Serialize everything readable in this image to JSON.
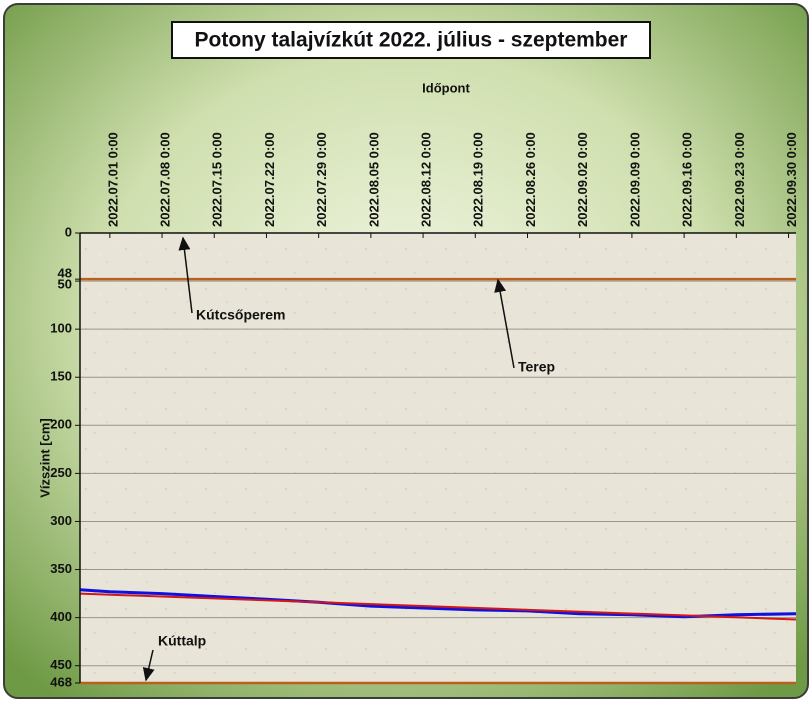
{
  "chart_data": {
    "type": "line",
    "title": "Potony talajvízkút 2022. július - szeptember",
    "x_label": "Időpont",
    "y_label": "Vízszint [cm]",
    "xlim": [
      "2022-06-27",
      "2022-10-01"
    ],
    "xticks": [
      {
        "value": "2022-07-01",
        "label": "2022.07.01 0:00"
      },
      {
        "value": "2022-07-08",
        "label": "2022.07.08 0:00"
      },
      {
        "value": "2022-07-15",
        "label": "2022.07.15 0:00"
      },
      {
        "value": "2022-07-22",
        "label": "2022.07.22 0:00"
      },
      {
        "value": "2022-07-29",
        "label": "2022.07.29 0:00"
      },
      {
        "value": "2022-08-05",
        "label": "2022.08.05 0:00"
      },
      {
        "value": "2022-08-12",
        "label": "2022.08.12 0:00"
      },
      {
        "value": "2022-08-19",
        "label": "2022.08.19 0:00"
      },
      {
        "value": "2022-08-26",
        "label": "2022.08.26 0:00"
      },
      {
        "value": "2022-09-02",
        "label": "2022.09.02 0:00"
      },
      {
        "value": "2022-09-09",
        "label": "2022.09.09 0:00"
      },
      {
        "value": "2022-09-16",
        "label": "2022.09.16 0:00"
      },
      {
        "value": "2022-09-23",
        "label": "2022.09.23 0:00"
      },
      {
        "value": "2022-09-30",
        "label": "2022.09.30 0:00"
      }
    ],
    "ylim": [
      0,
      468
    ],
    "y_inverted": true,
    "yticks": [
      0,
      48,
      50,
      100,
      150,
      200,
      250,
      300,
      350,
      400,
      450,
      468
    ],
    "grid": true,
    "series": [
      {
        "color": "#1010e0",
        "x": [
          "2022-06-27",
          "2022-07-01",
          "2022-07-08",
          "2022-07-15",
          "2022-07-22",
          "2022-07-29",
          "2022-08-05",
          "2022-08-12",
          "2022-08-19",
          "2022-08-26",
          "2022-09-02",
          "2022-09-09",
          "2022-09-16",
          "2022-09-23",
          "2022-10-01"
        ],
        "values": [
          371,
          373,
          375,
          378,
          381,
          384,
          388,
          390,
          392,
          393,
          396,
          397,
          399,
          397,
          396
        ]
      },
      {
        "color": "#d01818",
        "x": [
          "2022-06-27",
          "2022-10-01"
        ],
        "values": [
          375,
          402
        ]
      }
    ],
    "reference_lines": [
      {
        "value": 48,
        "color": "#b8601c"
      },
      {
        "value": 468,
        "color": "#b8601c"
      }
    ],
    "annotations": [
      "Kútcsőperem",
      "Terep",
      "Kúttalp"
    ]
  }
}
